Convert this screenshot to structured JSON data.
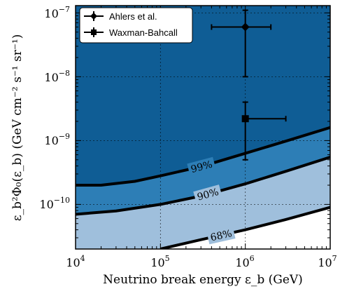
{
  "chart_data": {
    "type": "line",
    "xlabel": "Neutrino break energy ε_b (GeV)",
    "ylabel": "ε_b²Φ₀(ε_b) (GeV cm⁻² s⁻¹ sr⁻¹)",
    "xscale": "log",
    "yscale": "log",
    "xlim": [
      10000,
      10000000
    ],
    "ylim": [
      2e-11,
      1.3e-07
    ],
    "x_ticks": [
      {
        "value": 10000,
        "base": "10",
        "exp": "4"
      },
      {
        "value": 100000,
        "base": "10",
        "exp": "5"
      },
      {
        "value": 1000000,
        "base": "10",
        "exp": "6"
      },
      {
        "value": 10000000,
        "base": "10",
        "exp": "7"
      }
    ],
    "y_ticks": [
      {
        "value": 1e-10,
        "base": "10",
        "exp": "−10"
      },
      {
        "value": 1e-09,
        "base": "10",
        "exp": "−9"
      },
      {
        "value": 1e-08,
        "base": "10",
        "exp": "−8"
      },
      {
        "value": 1e-07,
        "base": "10",
        "exp": "−7"
      }
    ],
    "grid": true,
    "legend_position": "top-left",
    "contours": [
      {
        "label": "99%",
        "x": [
          10000,
          20000,
          50000,
          100000,
          300000,
          1000000,
          3000000,
          10000000
        ],
        "y": [
          2e-10,
          2e-10,
          2.3e-10,
          2.8e-10,
          3.9e-10,
          6.3e-10,
          9.8e-10,
          1.6e-09
        ]
      },
      {
        "label": "90%",
        "x": [
          10000,
          30000,
          100000,
          300000,
          1000000,
          3000000,
          10000000
        ],
        "y": [
          7e-11,
          7.9e-11,
          1e-10,
          1.35e-10,
          2.1e-10,
          3.3e-10,
          5.5e-10
        ]
      },
      {
        "label": "68%",
        "x": [
          100000,
          300000,
          1000000,
          3000000,
          10000000
        ],
        "y": [
          2e-11,
          2.8e-11,
          4e-11,
          5.8e-11,
          9e-11
        ]
      }
    ],
    "series": [
      {
        "name": "Ahlers et al.",
        "marker": "diamond",
        "x": 1000000,
        "y": 6e-08,
        "x_err": [
          400000,
          2000000
        ],
        "y_err": [
          1e-08,
          1.1e-07
        ]
      },
      {
        "name": "Waxman-Bahcall",
        "marker": "square",
        "x": 1000000,
        "y": 2.2e-09,
        "x_err": [
          1000000,
          3000000
        ],
        "y_err": [
          5e-10,
          4e-09
        ]
      }
    ],
    "colors": {
      "region_above_99": "#0f5d95",
      "region_90_99": "#2d7eb6",
      "region_68_90": "#9fbfdc",
      "region_below_68": "#ffffff",
      "contour_line": "#000000"
    }
  }
}
